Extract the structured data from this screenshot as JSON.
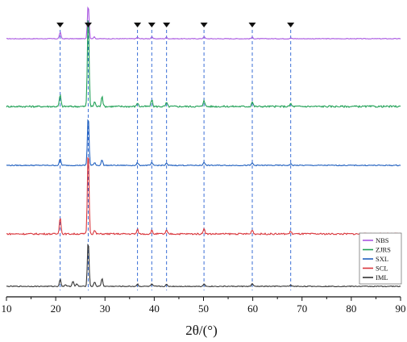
{
  "chart_data": {
    "type": "line",
    "xlabel": "2θ/(°)",
    "ylabel": "",
    "xlim": [
      10,
      90
    ],
    "xticks": [
      10,
      20,
      30,
      40,
      50,
      60,
      70,
      80,
      90
    ],
    "grid": false,
    "legend_position": "bottom-right",
    "marker_positions": [
      20.9,
      26.6,
      36.6,
      39.5,
      42.5,
      50.1,
      59.9,
      67.7
    ],
    "series": [
      {
        "name": "NBS",
        "color": "#a855e0",
        "peaks": [
          [
            20.9,
            0.18
          ],
          [
            26.6,
            1.0
          ],
          [
            27.8,
            0.05
          ],
          [
            36.6,
            0.04
          ],
          [
            39.5,
            0.05
          ],
          [
            42.5,
            0.04
          ],
          [
            50.1,
            0.06
          ],
          [
            59.9,
            0.04
          ],
          [
            67.7,
            0.03
          ]
        ]
      },
      {
        "name": "ZJRS",
        "color": "#1fa055",
        "peaks": [
          [
            20.9,
            0.12
          ],
          [
            26.6,
            1.0
          ],
          [
            27.9,
            0.05
          ],
          [
            29.4,
            0.11
          ],
          [
            36.6,
            0.04
          ],
          [
            39.5,
            0.07
          ],
          [
            42.5,
            0.04
          ],
          [
            50.1,
            0.07
          ],
          [
            59.9,
            0.05
          ],
          [
            67.7,
            0.03
          ]
        ]
      },
      {
        "name": "SXL",
        "color": "#1f5fbf",
        "peaks": [
          [
            20.9,
            0.13
          ],
          [
            26.6,
            1.0
          ],
          [
            27.9,
            0.06
          ],
          [
            29.4,
            0.11
          ],
          [
            36.6,
            0.05
          ],
          [
            39.5,
            0.05
          ],
          [
            42.5,
            0.04
          ],
          [
            50.1,
            0.07
          ],
          [
            59.9,
            0.05
          ],
          [
            67.7,
            0.03
          ]
        ]
      },
      {
        "name": "SCL",
        "color": "#d9343a",
        "peaks": [
          [
            20.9,
            0.2
          ],
          [
            26.6,
            1.0
          ],
          [
            27.9,
            0.04
          ],
          [
            36.6,
            0.05
          ],
          [
            39.5,
            0.04
          ],
          [
            42.5,
            0.04
          ],
          [
            50.1,
            0.07
          ],
          [
            59.9,
            0.05
          ],
          [
            67.7,
            0.03
          ]
        ]
      },
      {
        "name": "IML",
        "color": "#333333",
        "peaks": [
          [
            20.9,
            0.15
          ],
          [
            22.0,
            0.04
          ],
          [
            23.5,
            0.12
          ],
          [
            24.3,
            0.05
          ],
          [
            26.6,
            1.0
          ],
          [
            27.9,
            0.1
          ],
          [
            29.4,
            0.17
          ],
          [
            36.6,
            0.05
          ],
          [
            39.5,
            0.05
          ],
          [
            42.5,
            0.04
          ],
          [
            50.1,
            0.06
          ],
          [
            59.9,
            0.06
          ],
          [
            67.7,
            0.03
          ]
        ]
      }
    ]
  }
}
